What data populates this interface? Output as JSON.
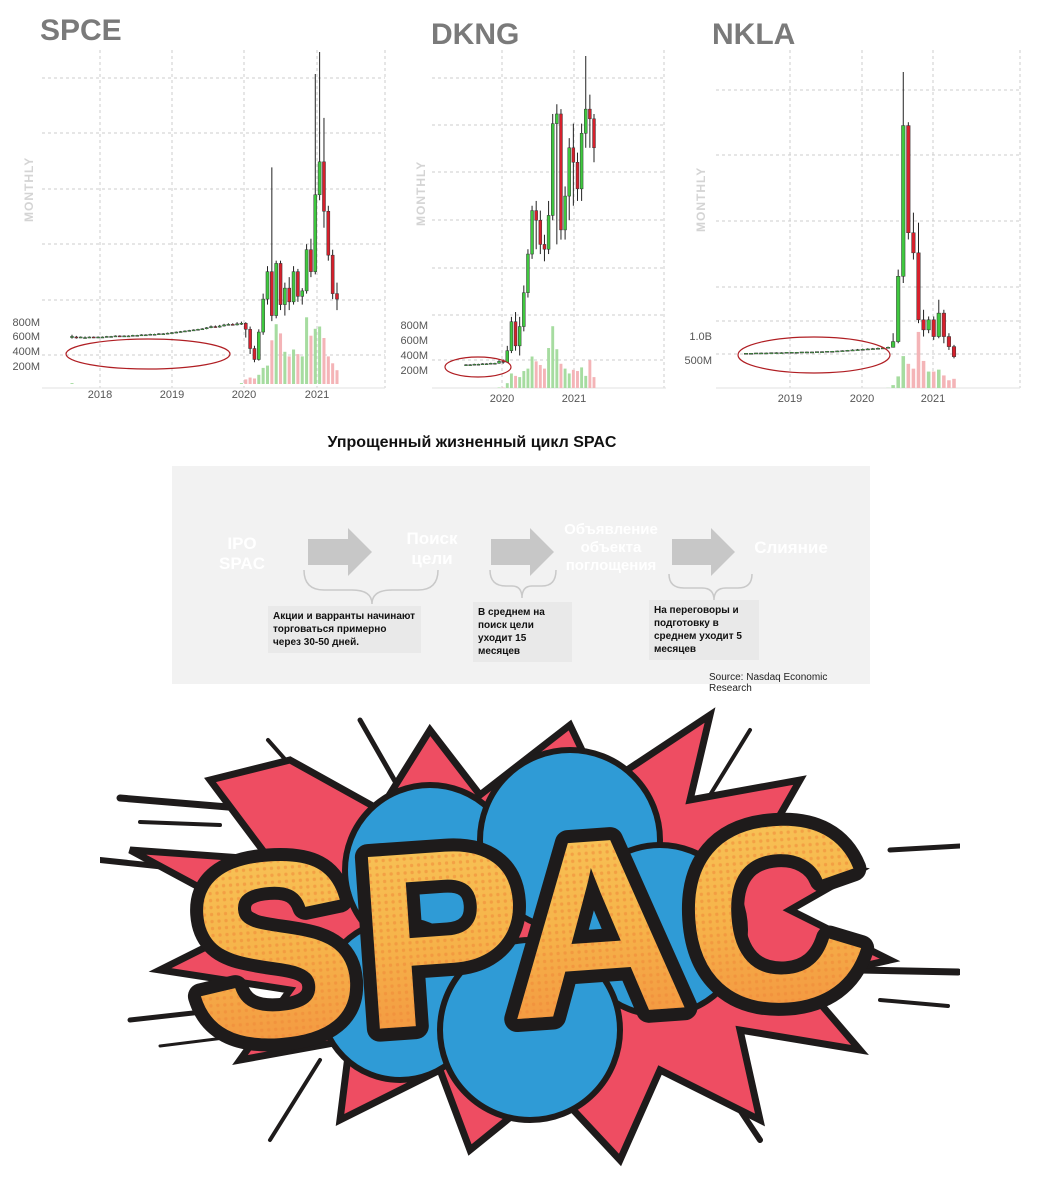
{
  "chart_data": [
    {
      "type": "candlestick",
      "title": "SPCE",
      "axis_label": "MONTHLY",
      "x_ticks": [
        "2018",
        "2019",
        "2020",
        "2021"
      ],
      "volume_ticks": [
        "800M",
        "600M",
        "400M",
        "200M"
      ],
      "candles": [
        {
          "o": 10.0,
          "c": 10.2,
          "h": 10.5,
          "l": 9.8,
          "v": 2
        },
        {
          "o": 10.1,
          "c": 10.0,
          "h": 10.3,
          "l": 9.8,
          "v": 1
        },
        {
          "o": 10.0,
          "c": 10.1,
          "h": 10.2,
          "l": 9.9,
          "v": 1
        },
        {
          "o": 10.0,
          "c": 10.0,
          "h": 10.2,
          "l": 9.9,
          "v": 1
        },
        {
          "o": 10.0,
          "c": 10.1,
          "h": 10.2,
          "l": 9.9,
          "v": 1
        },
        {
          "o": 10.1,
          "c": 10.0,
          "h": 10.2,
          "l": 9.9,
          "v": 1
        },
        {
          "o": 10.0,
          "c": 10.1,
          "h": 10.2,
          "l": 9.9,
          "v": 1
        },
        {
          "o": 10.1,
          "c": 10.1,
          "h": 10.2,
          "l": 10.0,
          "v": 1
        },
        {
          "o": 10.1,
          "c": 10.2,
          "h": 10.3,
          "l": 10.0,
          "v": 1
        },
        {
          "o": 10.2,
          "c": 10.2,
          "h": 10.3,
          "l": 10.1,
          "v": 1
        },
        {
          "o": 10.2,
          "c": 10.3,
          "h": 10.4,
          "l": 10.1,
          "v": 1
        },
        {
          "o": 10.3,
          "c": 10.2,
          "h": 10.4,
          "l": 10.1,
          "v": 1
        },
        {
          "o": 10.2,
          "c": 10.3,
          "h": 10.4,
          "l": 10.1,
          "v": 1
        },
        {
          "o": 10.3,
          "c": 10.3,
          "h": 10.4,
          "l": 10.2,
          "v": 1
        },
        {
          "o": 10.3,
          "c": 10.4,
          "h": 10.5,
          "l": 10.2,
          "v": 1
        },
        {
          "o": 10.4,
          "c": 10.4,
          "h": 10.5,
          "l": 10.3,
          "v": 1
        },
        {
          "o": 10.4,
          "c": 10.5,
          "h": 10.6,
          "l": 10.3,
          "v": 1
        },
        {
          "o": 10.5,
          "c": 10.5,
          "h": 10.6,
          "l": 10.4,
          "v": 1
        },
        {
          "o": 10.5,
          "c": 10.6,
          "h": 10.7,
          "l": 10.4,
          "v": 1
        },
        {
          "o": 10.6,
          "c": 10.6,
          "h": 10.7,
          "l": 10.5,
          "v": 1
        },
        {
          "o": 10.6,
          "c": 10.7,
          "h": 10.8,
          "l": 10.5,
          "v": 1
        },
        {
          "o": 10.7,
          "c": 10.7,
          "h": 10.8,
          "l": 10.6,
          "v": 1
        },
        {
          "o": 10.7,
          "c": 10.8,
          "h": 10.9,
          "l": 10.6,
          "v": 1
        },
        {
          "o": 10.8,
          "c": 10.9,
          "h": 11.0,
          "l": 10.7,
          "v": 1
        },
        {
          "o": 10.9,
          "c": 11.0,
          "h": 11.1,
          "l": 10.8,
          "v": 1
        },
        {
          "o": 11.0,
          "c": 11.1,
          "h": 11.2,
          "l": 10.9,
          "v": 1
        },
        {
          "o": 11.1,
          "c": 11.2,
          "h": 11.3,
          "l": 11.0,
          "v": 1
        },
        {
          "o": 11.2,
          "c": 11.3,
          "h": 11.4,
          "l": 11.1,
          "v": 1
        },
        {
          "o": 11.3,
          "c": 11.4,
          "h": 11.5,
          "l": 11.2,
          "v": 1
        },
        {
          "o": 11.4,
          "c": 11.5,
          "h": 11.6,
          "l": 11.3,
          "v": 1
        },
        {
          "o": 11.5,
          "c": 11.6,
          "h": 11.7,
          "l": 11.4,
          "v": 1
        },
        {
          "o": 11.6,
          "c": 11.8,
          "h": 11.9,
          "l": 11.5,
          "v": 1
        },
        {
          "o": 11.8,
          "c": 12.0,
          "h": 12.2,
          "l": 11.7,
          "v": 1
        },
        {
          "o": 12.0,
          "c": 11.9,
          "h": 12.2,
          "l": 11.8,
          "v": 1
        },
        {
          "o": 11.9,
          "c": 12.1,
          "h": 12.3,
          "l": 11.8,
          "v": 1
        },
        {
          "o": 12.1,
          "c": 12.3,
          "h": 12.5,
          "l": 12.0,
          "v": 1
        },
        {
          "o": 12.3,
          "c": 12.4,
          "h": 12.6,
          "l": 12.2,
          "v": 1
        },
        {
          "o": 12.4,
          "c": 12.3,
          "h": 12.6,
          "l": 12.2,
          "v": 1
        },
        {
          "o": 12.3,
          "c": 12.5,
          "h": 12.8,
          "l": 12.2,
          "v": 1
        },
        {
          "o": 12.5,
          "c": 12.6,
          "h": 12.9,
          "l": 12.3,
          "v": 2
        },
        {
          "o": 12.6,
          "c": 11.5,
          "h": 12.8,
          "l": 10.0,
          "v": 10
        },
        {
          "o": 11.5,
          "c": 8.0,
          "h": 12.0,
          "l": 7.0,
          "v": 14
        },
        {
          "o": 8.0,
          "c": 6.0,
          "h": 8.5,
          "l": 5.5,
          "v": 12
        },
        {
          "o": 6.0,
          "c": 11.0,
          "h": 11.5,
          "l": 5.8,
          "v": 20
        },
        {
          "o": 11.0,
          "c": 17.0,
          "h": 18.0,
          "l": 10.5,
          "v": 35
        },
        {
          "o": 17.0,
          "c": 22.0,
          "h": 23.0,
          "l": 16.0,
          "v": 40
        },
        {
          "o": 22.0,
          "c": 14.0,
          "h": 41.0,
          "l": 13.0,
          "v": 95
        },
        {
          "o": 14.0,
          "c": 23.5,
          "h": 24.0,
          "l": 13.5,
          "v": 130
        },
        {
          "o": 23.5,
          "c": 16.0,
          "h": 24.0,
          "l": 15.0,
          "v": 110
        },
        {
          "o": 16.0,
          "c": 19.0,
          "h": 20.0,
          "l": 14.0,
          "v": 70
        },
        {
          "o": 19.0,
          "c": 16.5,
          "h": 21.0,
          "l": 15.0,
          "v": 60
        },
        {
          "o": 16.5,
          "c": 22.0,
          "h": 23.0,
          "l": 16.0,
          "v": 75
        },
        {
          "o": 22.0,
          "c": 17.5,
          "h": 22.5,
          "l": 16.5,
          "v": 65
        },
        {
          "o": 17.5,
          "c": 18.5,
          "h": 19.0,
          "l": 16.0,
          "v": 60
        },
        {
          "o": 18.5,
          "c": 26.0,
          "h": 27.0,
          "l": 18.0,
          "v": 145
        },
        {
          "o": 26.0,
          "c": 22.0,
          "h": 28.0,
          "l": 21.0,
          "v": 105
        },
        {
          "o": 22.0,
          "c": 36.0,
          "h": 58.0,
          "l": 21.5,
          "v": 120
        },
        {
          "o": 36.0,
          "c": 42.0,
          "h": 62.0,
          "l": 35.0,
          "v": 125
        },
        {
          "o": 42.0,
          "c": 33.0,
          "h": 50.0,
          "l": 30.0,
          "v": 100
        },
        {
          "o": 33.0,
          "c": 25.0,
          "h": 34.0,
          "l": 24.0,
          "v": 60
        },
        {
          "o": 25.0,
          "c": 18.0,
          "h": 26.0,
          "l": 17.0,
          "v": 45
        },
        {
          "o": 18.0,
          "c": 17.0,
          "h": 20.0,
          "l": 15.0,
          "v": 30
        }
      ]
    },
    {
      "type": "candlestick",
      "title": "DKNG",
      "axis_label": "MONTHLY",
      "x_ticks": [
        "2020",
        "2021"
      ],
      "volume_ticks": [
        "800M",
        "600M",
        "400M",
        "200M"
      ],
      "candles": [
        {
          "o": 10.0,
          "c": 10.1,
          "h": 10.2,
          "l": 9.9,
          "v": 1
        },
        {
          "o": 10.1,
          "c": 10.1,
          "h": 10.2,
          "l": 10.0,
          "v": 1
        },
        {
          "o": 10.1,
          "c": 10.2,
          "h": 10.3,
          "l": 10.0,
          "v": 1
        },
        {
          "o": 10.2,
          "c": 10.2,
          "h": 10.3,
          "l": 10.1,
          "v": 1
        },
        {
          "o": 10.2,
          "c": 10.3,
          "h": 10.4,
          "l": 10.1,
          "v": 1
        },
        {
          "o": 10.3,
          "c": 10.3,
          "h": 10.4,
          "l": 10.2,
          "v": 1
        },
        {
          "o": 10.3,
          "c": 10.4,
          "h": 10.5,
          "l": 10.2,
          "v": 1
        },
        {
          "o": 10.4,
          "c": 10.4,
          "h": 10.5,
          "l": 10.3,
          "v": 1
        },
        {
          "o": 10.4,
          "c": 10.8,
          "h": 11.0,
          "l": 10.3,
          "v": 2
        },
        {
          "o": 10.8,
          "c": 10.6,
          "h": 11.2,
          "l": 10.3,
          "v": 2
        },
        {
          "o": 10.6,
          "c": 13.0,
          "h": 14.0,
          "l": 10.5,
          "v": 20
        },
        {
          "o": 13.0,
          "c": 19.0,
          "h": 20.0,
          "l": 12.5,
          "v": 60
        },
        {
          "o": 19.0,
          "c": 14.0,
          "h": 21.0,
          "l": 13.0,
          "v": 50
        },
        {
          "o": 14.0,
          "c": 18.0,
          "h": 20.0,
          "l": 12.0,
          "v": 45
        },
        {
          "o": 18.0,
          "c": 25.0,
          "h": 26.5,
          "l": 17.0,
          "v": 70
        },
        {
          "o": 25.0,
          "c": 33.0,
          "h": 34.0,
          "l": 24.0,
          "v": 80
        },
        {
          "o": 33.0,
          "c": 42.0,
          "h": 43.0,
          "l": 32.0,
          "v": 130
        },
        {
          "o": 42.0,
          "c": 40.0,
          "h": 44.0,
          "l": 34.0,
          "v": 110
        },
        {
          "o": 40.0,
          "c": 35.0,
          "h": 42.0,
          "l": 33.0,
          "v": 95
        },
        {
          "o": 35.0,
          "c": 34.0,
          "h": 37.0,
          "l": 31.5,
          "v": 80
        },
        {
          "o": 34.0,
          "c": 41.0,
          "h": 44.0,
          "l": 33.0,
          "v": 165
        },
        {
          "o": 41.0,
          "c": 60.0,
          "h": 62.0,
          "l": 40.0,
          "v": 255
        },
        {
          "o": 60.0,
          "c": 62.0,
          "h": 64.0,
          "l": 35.0,
          "v": 160
        },
        {
          "o": 62.0,
          "c": 38.0,
          "h": 63.0,
          "l": 36.0,
          "v": 100
        },
        {
          "o": 38.0,
          "c": 45.0,
          "h": 47.0,
          "l": 36.0,
          "v": 80
        },
        {
          "o": 45.0,
          "c": 55.0,
          "h": 57.0,
          "l": 40.0,
          "v": 60
        },
        {
          "o": 55.0,
          "c": 52.0,
          "h": 60.0,
          "l": 43.0,
          "v": 75
        },
        {
          "o": 52.0,
          "c": 46.5,
          "h": 54.0,
          "l": 44.0,
          "v": 70
        },
        {
          "o": 46.5,
          "c": 58.0,
          "h": 60.0,
          "l": 44.0,
          "v": 85
        },
        {
          "o": 58.0,
          "c": 63.0,
          "h": 74.0,
          "l": 55.0,
          "v": 50
        },
        {
          "o": 63.0,
          "c": 61.0,
          "h": 66.0,
          "l": 55.0,
          "v": 115
        },
        {
          "o": 61.0,
          "c": 55.0,
          "h": 62.0,
          "l": 52.0,
          "v": 45
        }
      ]
    },
    {
      "type": "candlestick",
      "title": "NKLA",
      "axis_label": "MONTHLY",
      "x_ticks": [
        "2019",
        "2020",
        "2021"
      ],
      "volume_ticks": [
        "1.0B",
        "500M"
      ],
      "candles": [
        {
          "o": 10.0,
          "c": 10.0,
          "h": 10.1,
          "l": 9.9,
          "v": 1
        },
        {
          "o": 10.0,
          "c": 10.0,
          "h": 10.1,
          "l": 9.9,
          "v": 1
        },
        {
          "o": 10.0,
          "c": 10.1,
          "h": 10.1,
          "l": 9.9,
          "v": 1
        },
        {
          "o": 10.1,
          "c": 10.1,
          "h": 10.2,
          "l": 10.0,
          "v": 1
        },
        {
          "o": 10.1,
          "c": 10.1,
          "h": 10.2,
          "l": 10.0,
          "v": 1
        },
        {
          "o": 10.1,
          "c": 10.2,
          "h": 10.2,
          "l": 10.0,
          "v": 1
        },
        {
          "o": 10.2,
          "c": 10.2,
          "h": 10.3,
          "l": 10.1,
          "v": 1
        },
        {
          "o": 10.2,
          "c": 10.2,
          "h": 10.3,
          "l": 10.1,
          "v": 1
        },
        {
          "o": 10.2,
          "c": 10.3,
          "h": 10.3,
          "l": 10.1,
          "v": 1
        },
        {
          "o": 10.3,
          "c": 10.3,
          "h": 10.4,
          "l": 10.2,
          "v": 1
        },
        {
          "o": 10.3,
          "c": 10.3,
          "h": 10.4,
          "l": 10.2,
          "v": 1
        },
        {
          "o": 10.3,
          "c": 10.4,
          "h": 10.4,
          "l": 10.2,
          "v": 1
        },
        {
          "o": 10.4,
          "c": 10.4,
          "h": 10.5,
          "l": 10.3,
          "v": 1
        },
        {
          "o": 10.4,
          "c": 10.4,
          "h": 10.5,
          "l": 10.3,
          "v": 1
        },
        {
          "o": 10.4,
          "c": 10.5,
          "h": 10.5,
          "l": 10.3,
          "v": 1
        },
        {
          "o": 10.5,
          "c": 10.5,
          "h": 10.6,
          "l": 10.4,
          "v": 1
        },
        {
          "o": 10.5,
          "c": 10.6,
          "h": 10.6,
          "l": 10.4,
          "v": 1
        },
        {
          "o": 10.6,
          "c": 10.6,
          "h": 10.7,
          "l": 10.5,
          "v": 1
        },
        {
          "o": 10.6,
          "c": 10.7,
          "h": 10.8,
          "l": 10.5,
          "v": 1
        },
        {
          "o": 10.7,
          "c": 10.8,
          "h": 10.9,
          "l": 10.6,
          "v": 1
        },
        {
          "o": 10.8,
          "c": 10.9,
          "h": 11.0,
          "l": 10.7,
          "v": 1
        },
        {
          "o": 10.9,
          "c": 11.0,
          "h": 11.2,
          "l": 10.8,
          "v": 1
        },
        {
          "o": 11.0,
          "c": 11.1,
          "h": 11.3,
          "l": 10.9,
          "v": 1
        },
        {
          "o": 11.1,
          "c": 11.2,
          "h": 11.4,
          "l": 11.0,
          "v": 1
        },
        {
          "o": 11.2,
          "c": 11.3,
          "h": 11.5,
          "l": 11.1,
          "v": 1
        },
        {
          "o": 11.3,
          "c": 11.4,
          "h": 11.6,
          "l": 11.2,
          "v": 1
        },
        {
          "o": 11.4,
          "c": 11.5,
          "h": 11.7,
          "l": 11.3,
          "v": 1
        },
        {
          "o": 11.5,
          "c": 11.6,
          "h": 11.9,
          "l": 11.4,
          "v": 1
        },
        {
          "o": 11.6,
          "c": 11.8,
          "h": 12.0,
          "l": 11.5,
          "v": 2
        },
        {
          "o": 11.8,
          "c": 13.5,
          "h": 16.0,
          "l": 11.7,
          "v": 30
        },
        {
          "o": 13.5,
          "c": 33.0,
          "h": 35.0,
          "l": 13.0,
          "v": 120
        },
        {
          "o": 33.0,
          "c": 78.0,
          "h": 94.0,
          "l": 31.0,
          "v": 330
        },
        {
          "o": 78.0,
          "c": 46.0,
          "h": 79.0,
          "l": 44.0,
          "v": 250
        },
        {
          "o": 46.0,
          "c": 40.0,
          "h": 52.0,
          "l": 38.0,
          "v": 200
        },
        {
          "o": 40.0,
          "c": 20.0,
          "h": 49.0,
          "l": 19.0,
          "v": 580
        },
        {
          "o": 20.0,
          "c": 17.0,
          "h": 23.0,
          "l": 15.0,
          "v": 280
        },
        {
          "o": 17.0,
          "c": 20.0,
          "h": 21.0,
          "l": 16.0,
          "v": 170
        },
        {
          "o": 20.0,
          "c": 15.0,
          "h": 21.0,
          "l": 14.0,
          "v": 170
        },
        {
          "o": 15.0,
          "c": 22.0,
          "h": 26.0,
          "l": 14.5,
          "v": 190
        },
        {
          "o": 22.0,
          "c": 15.0,
          "h": 23.0,
          "l": 13.0,
          "v": 130
        },
        {
          "o": 15.0,
          "c": 12.0,
          "h": 16.0,
          "l": 11.0,
          "v": 80
        },
        {
          "o": 12.0,
          "c": 9.0,
          "h": 12.5,
          "l": 8.5,
          "v": 95
        }
      ]
    }
  ],
  "infographic": {
    "title": "Упрощенный жизненный цикл SPAC",
    "stages": [
      {
        "line1": "IPO",
        "line2": "SPAC",
        "color": "#5896b4"
      },
      {
        "line1": "Поиск",
        "line2": "цели",
        "color": "#2c3f8c"
      },
      {
        "line1": "Объявление",
        "line2": "объекта",
        "line3": "поглощения",
        "color": "#ecbf3e"
      },
      {
        "line1": "Слияние",
        "line2": "",
        "color": "#7bb24a"
      }
    ],
    "notes": [
      "Акции и варранты начинают торговаться примерно через 30-50 дней.",
      "В среднем на поиск цели уходит 15 месяцев",
      "На переговоры и подготовку в среднем уходит 5 месяцев"
    ],
    "source": "Source: Nasdaq Economic Research"
  },
  "banner": {
    "text": "SPAC",
    "colors": {
      "burst": "#ee4d62",
      "bubbles": "#2f9bd6",
      "letters": "#f6b44a",
      "outline": "#1e1b1b"
    }
  },
  "colors": {
    "up": "#3fc83f",
    "down": "#d6202c",
    "up_vol": "#a6dca0",
    "down_vol": "#f4b4b7",
    "grid": "#cccccc",
    "oval": "#b01e23"
  }
}
